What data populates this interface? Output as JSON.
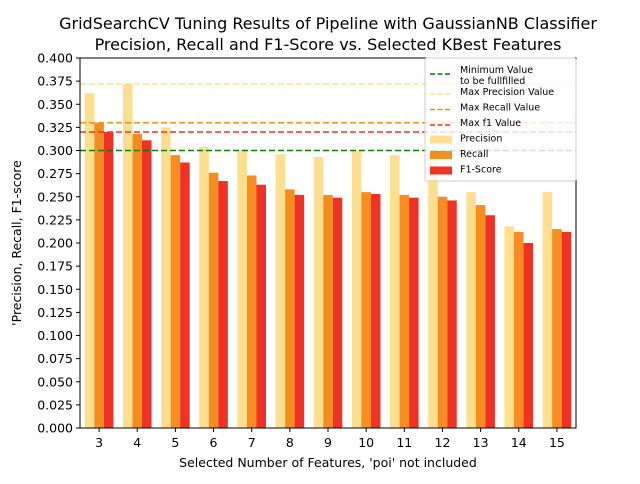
{
  "chart_data": {
    "type": "bar",
    "title": "GridSearchCV Tuning Results of Pipeline with GaussianNB Classifier",
    "subtitle": "Precision, Recall and F1-Score vs. Selected KBest Features",
    "xlabel": "Selected Number of Features, 'poi' not included",
    "ylabel": "'Precision, Recall, F1-score",
    "ylim": [
      0,
      0.4
    ],
    "yticks": [
      "0.000",
      "0.025",
      "0.050",
      "0.075",
      "0.100",
      "0.125",
      "0.150",
      "0.175",
      "0.200",
      "0.225",
      "0.250",
      "0.275",
      "0.300",
      "0.325",
      "0.350",
      "0.375",
      "0.400"
    ],
    "categories": [
      "3",
      "4",
      "5",
      "6",
      "7",
      "8",
      "9",
      "10",
      "11",
      "12",
      "13",
      "14",
      "15"
    ],
    "series": [
      {
        "name": "Precision",
        "color": "#fedf8f",
        "values": [
          0.362,
          0.372,
          0.325,
          0.304,
          0.3,
          0.296,
          0.293,
          0.3,
          0.295,
          0.29,
          0.255,
          0.218,
          0.255
        ]
      },
      {
        "name": "Recall",
        "color": "#f68d20",
        "values": [
          0.33,
          0.318,
          0.295,
          0.276,
          0.273,
          0.258,
          0.252,
          0.255,
          0.252,
          0.25,
          0.241,
          0.212,
          0.215
        ]
      },
      {
        "name": "F1-Score",
        "color": "#ee3324",
        "values": [
          0.32,
          0.311,
          0.287,
          0.267,
          0.263,
          0.252,
          0.249,
          0.253,
          0.249,
          0.246,
          0.23,
          0.2,
          0.212
        ]
      }
    ],
    "reference_lines": [
      {
        "name": "Minimum Value\nto be fullfilled",
        "value": 0.3,
        "color": "#008000"
      },
      {
        "name": "Max Precision Value",
        "value": 0.372,
        "color": "#fedf8f"
      },
      {
        "name": "Max Recall Value",
        "value": 0.33,
        "color": "#f68d20"
      },
      {
        "name": "Max f1 Value",
        "value": 0.32,
        "color": "#ee3324"
      }
    ],
    "legend_position": "top-right",
    "grid": false
  }
}
